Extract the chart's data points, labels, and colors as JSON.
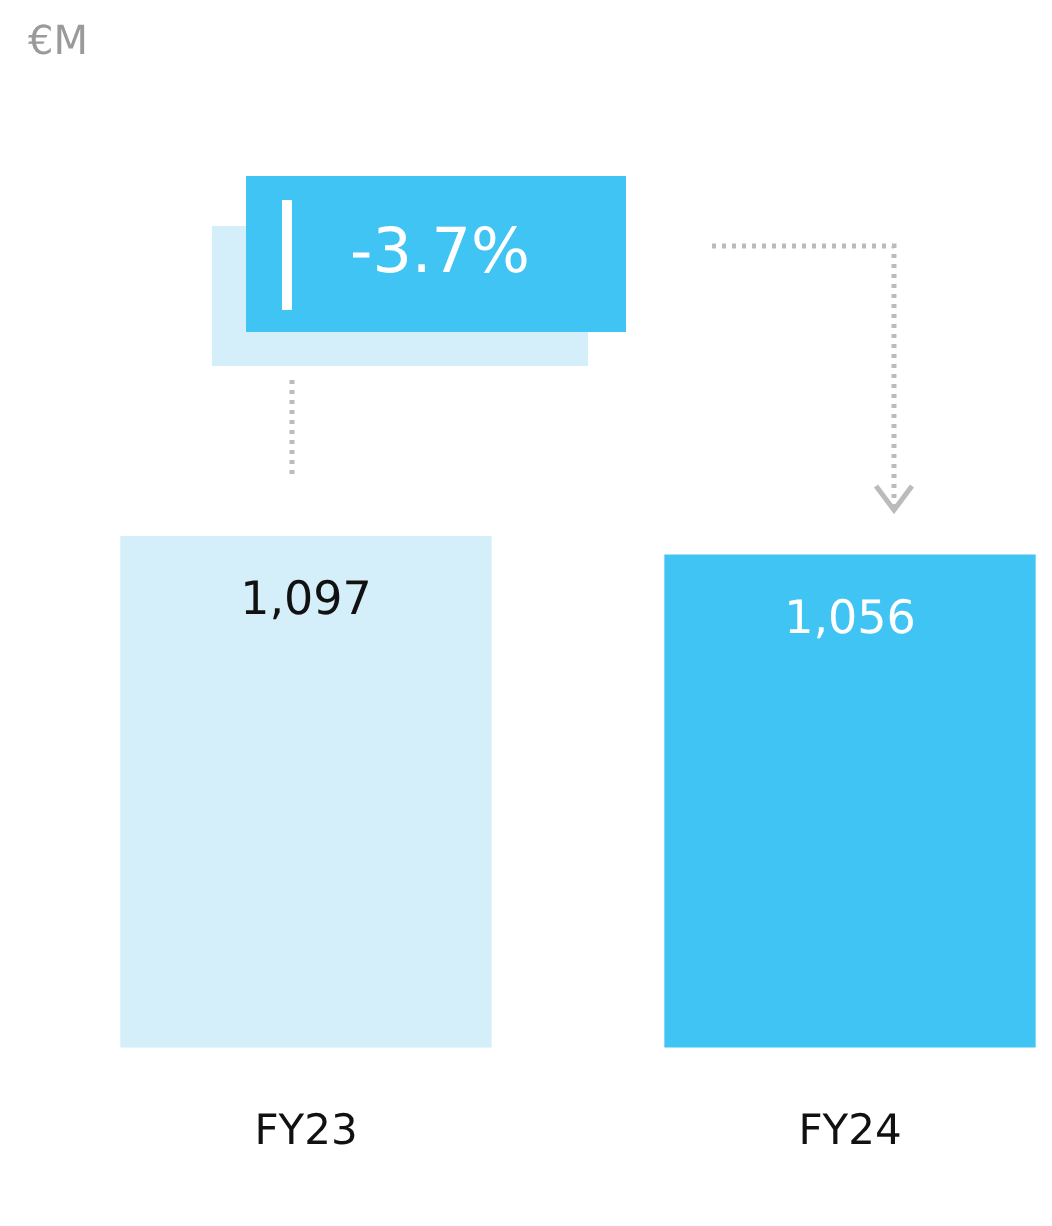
{
  "chart_data": {
    "type": "bar",
    "categories": [
      "FY23",
      "FY24"
    ],
    "values": [
      1097,
      1056
    ],
    "colors": [
      "#d4eff9",
      "#40c4f3"
    ],
    "value_labels": [
      "1,097",
      "1,056"
    ],
    "legend": false,
    "grid": false,
    "tick_labels": "x",
    "annotations": [
      "€M",
      "-3.7%"
    ]
  }
}
